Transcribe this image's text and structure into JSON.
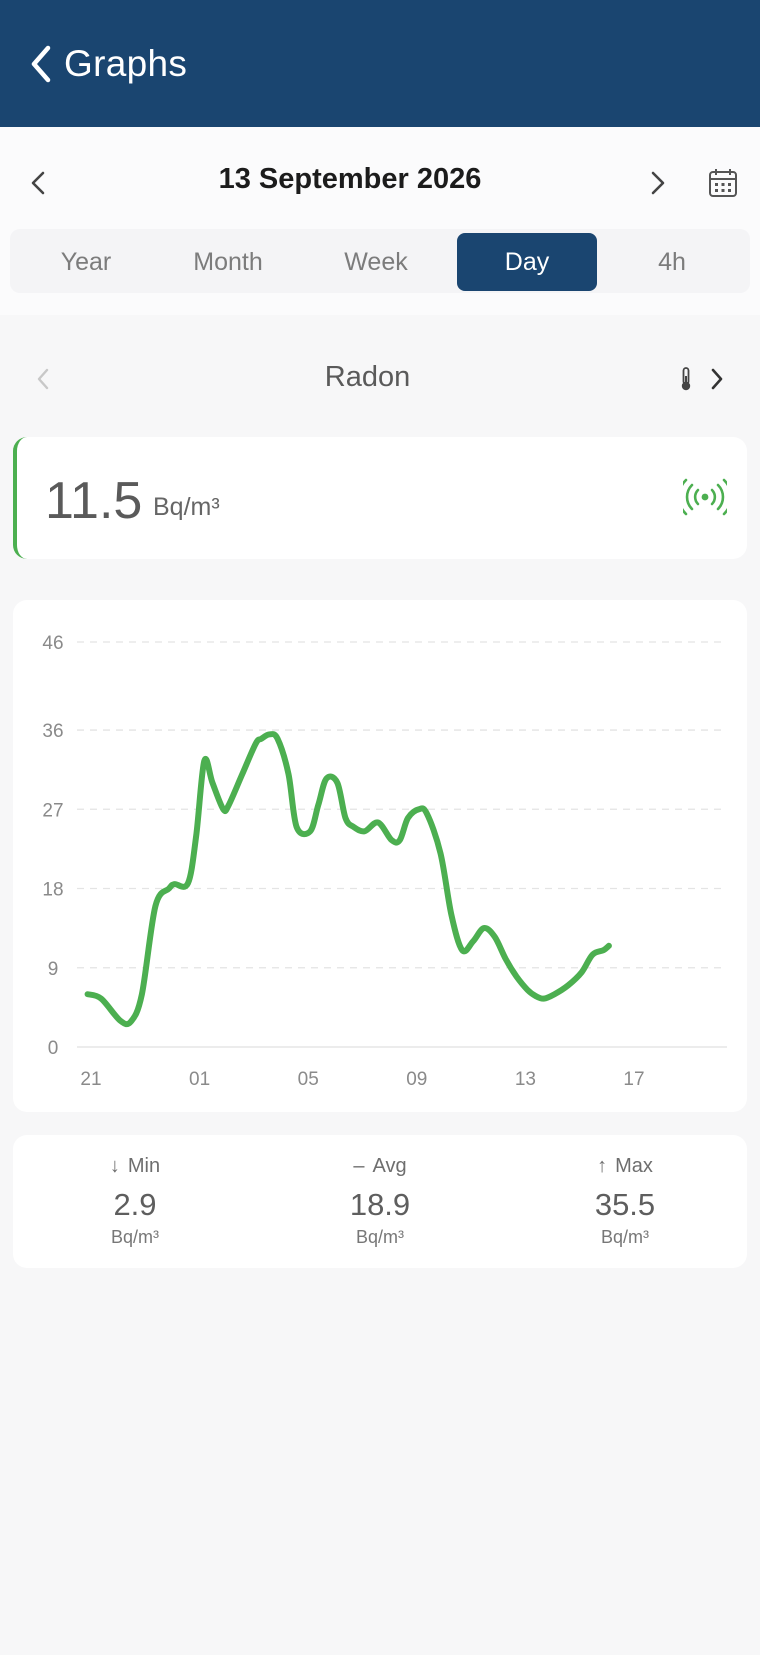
{
  "header": {
    "title": "Graphs",
    "background": "#1a4570"
  },
  "date_nav": {
    "date": "13 September 2026"
  },
  "tabs": [
    {
      "label": "Year",
      "active": false
    },
    {
      "label": "Month",
      "active": false
    },
    {
      "label": "Week",
      "active": false
    },
    {
      "label": "Day",
      "active": true
    },
    {
      "label": "4h",
      "active": false
    }
  ],
  "sensor": {
    "name": "Radon",
    "current_value": "11.5",
    "unit": "Bq/m³",
    "status_color": "#4caf50"
  },
  "stats": {
    "min": {
      "label": "Min",
      "value": "2.9",
      "unit": "Bq/m³",
      "arrow": "↓"
    },
    "avg": {
      "label": "Avg",
      "value": "18.9",
      "unit": "Bq/m³",
      "arrow": "–"
    },
    "max": {
      "label": "Max",
      "value": "35.5",
      "unit": "Bq/m³",
      "arrow": "↑"
    }
  },
  "chart_data": {
    "type": "line",
    "yticks": [
      0,
      9,
      18,
      27,
      36,
      46
    ],
    "xticks": [
      "21",
      "01",
      "05",
      "09",
      "13",
      "17"
    ],
    "ylim": [
      0,
      46
    ],
    "grid": true,
    "series": [
      {
        "color": "#4caf50",
        "x": [
          -0.2,
          0.3,
          1.0,
          1.4,
          1.8,
          2.3,
          2.8,
          3.0,
          3.5,
          3.8,
          4.1,
          4.4,
          4.8,
          5.0,
          5.5,
          6.0,
          6.2,
          6.5,
          6.8,
          7.2,
          7.5,
          8.0,
          8.3,
          8.6,
          9.0,
          9.3,
          9.6,
          10.0,
          10.5,
          11.0,
          11.3,
          11.6,
          12.0,
          12.3,
          12.8,
          13.2,
          13.6,
          14.0,
          14.4,
          14.8,
          15.2,
          15.6,
          16.0,
          16.3,
          16.6,
          17.0,
          17.5,
          18.0,
          18.4,
          18.8,
          19.0
        ],
        "y": [
          6,
          5.5,
          3.0,
          2.9,
          6,
          16,
          18,
          18.5,
          18.6,
          24,
          32.5,
          30,
          27,
          27.5,
          31,
          34.5,
          35,
          35.5,
          35,
          31,
          25,
          24.5,
          27.5,
          30.5,
          30,
          26,
          25,
          24.5,
          25.5,
          23.5,
          23.5,
          26,
          27,
          26.5,
          22,
          15,
          11,
          12,
          13.5,
          12.5,
          10,
          8,
          6.5,
          5.8,
          5.5,
          6,
          7,
          8.5,
          10.5,
          11,
          11.5
        ]
      }
    ]
  }
}
